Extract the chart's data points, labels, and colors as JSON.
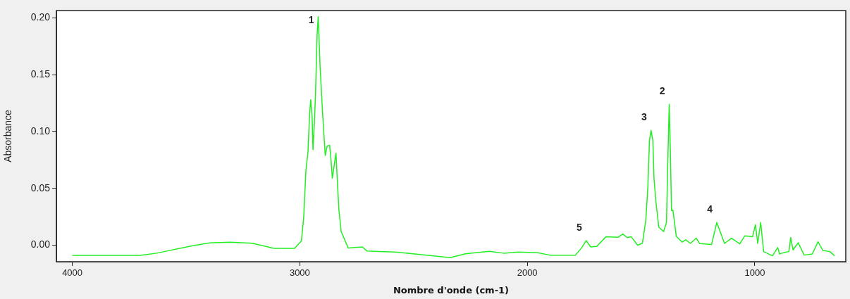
{
  "chart_data": {
    "type": "line",
    "xlabel": "Nombre d'onde (cm-1)",
    "ylabel": "Absorbance",
    "x": [
      4000,
      3703,
      3629,
      3487,
      3396,
      3306,
      3209,
      3113,
      3023,
      2993,
      2983,
      2973,
      2964,
      2957,
      2952,
      2946,
      2942,
      2936,
      2931,
      2924,
      2919,
      2911,
      2900,
      2893,
      2888,
      2880,
      2869,
      2864,
      2857,
      2849,
      2841,
      2834,
      2828,
      2818,
      2787,
      2725,
      2705,
      2653,
      2581,
      2479,
      2381,
      2340,
      2272,
      2167,
      2105,
      2037,
      1954,
      1901,
      1788,
      1762,
      1741,
      1721,
      1695,
      1654,
      1602,
      1580,
      1561,
      1543,
      1515,
      1494,
      1479,
      1470,
      1463,
      1456,
      1448,
      1443,
      1435,
      1422,
      1401,
      1388,
      1383,
      1376,
      1371,
      1366,
      1360,
      1345,
      1319,
      1303,
      1283,
      1257,
      1242,
      1190,
      1167,
      1133,
      1102,
      1066,
      1044,
      1010,
      997,
      987,
      974,
      961,
      922,
      899,
      891,
      871,
      850,
      842,
      832,
      809,
      783,
      747,
      722,
      701,
      670,
      649
    ],
    "values": [
      -0.009,
      -0.009,
      -0.007,
      -0.001,
      0.002,
      0.0027,
      0.0017,
      -0.0027,
      -0.0027,
      0.0037,
      0.024,
      0.066,
      0.082,
      0.115,
      0.128,
      0.113,
      0.084,
      0.107,
      0.132,
      0.185,
      0.201,
      0.158,
      0.117,
      0.094,
      0.079,
      0.087,
      0.088,
      0.078,
      0.059,
      0.07,
      0.081,
      0.053,
      0.031,
      0.012,
      -0.0025,
      -0.0015,
      -0.005,
      -0.0055,
      -0.006,
      -0.008,
      -0.01,
      -0.011,
      -0.0076,
      -0.0054,
      -0.007,
      -0.006,
      -0.0066,
      -0.0087,
      -0.0087,
      -0.0025,
      0.0041,
      -0.0015,
      -0.001,
      0.0074,
      0.007,
      0.0099,
      0.0067,
      0.0074,
      0.0,
      0.0017,
      0.022,
      0.051,
      0.092,
      0.101,
      0.092,
      0.059,
      0.039,
      0.016,
      0.012,
      0.02,
      0.068,
      0.124,
      0.082,
      0.0305,
      0.031,
      0.0078,
      0.0027,
      0.0048,
      0.0016,
      0.0062,
      0.0014,
      0.0006,
      0.02,
      0.0016,
      0.0062,
      0.0012,
      0.0082,
      0.0074,
      0.018,
      0.0016,
      0.02,
      -0.0056,
      -0.0093,
      -0.002,
      -0.0077,
      -0.0064,
      -0.0056,
      0.0068,
      -0.0041,
      0.0022,
      -0.0087,
      -0.0077,
      0.0031,
      -0.0046,
      -0.0056,
      -0.0093
    ],
    "color": "#22ee22",
    "marker": "none",
    "line_style": "solid",
    "xlim": [
      4070,
      600
    ],
    "xticks": [
      4000,
      3000,
      2000,
      1000
    ],
    "ylim": [
      -0.0145,
      0.2064
    ],
    "yticks": [
      {
        "value": 0,
        "label": "0.00"
      },
      {
        "value": 0.05,
        "label": "0.05"
      },
      {
        "value": 0.1,
        "label": "0.10"
      },
      {
        "value": 0.15,
        "label": "0.15"
      },
      {
        "value": 0.2,
        "label": "0.20"
      }
    ],
    "grid": false,
    "legend": false,
    "annotations": [
      {
        "text": "1",
        "x": 2919,
        "y": 0.201
      },
      {
        "text": "2",
        "x": 1376,
        "y": 0.124
      },
      {
        "text": "3",
        "x": 1456,
        "y": 0.101
      },
      {
        "text": "4",
        "x": 1167,
        "y": 0.02
      },
      {
        "text": "5",
        "x": 1741,
        "y": 0.0041
      }
    ]
  }
}
